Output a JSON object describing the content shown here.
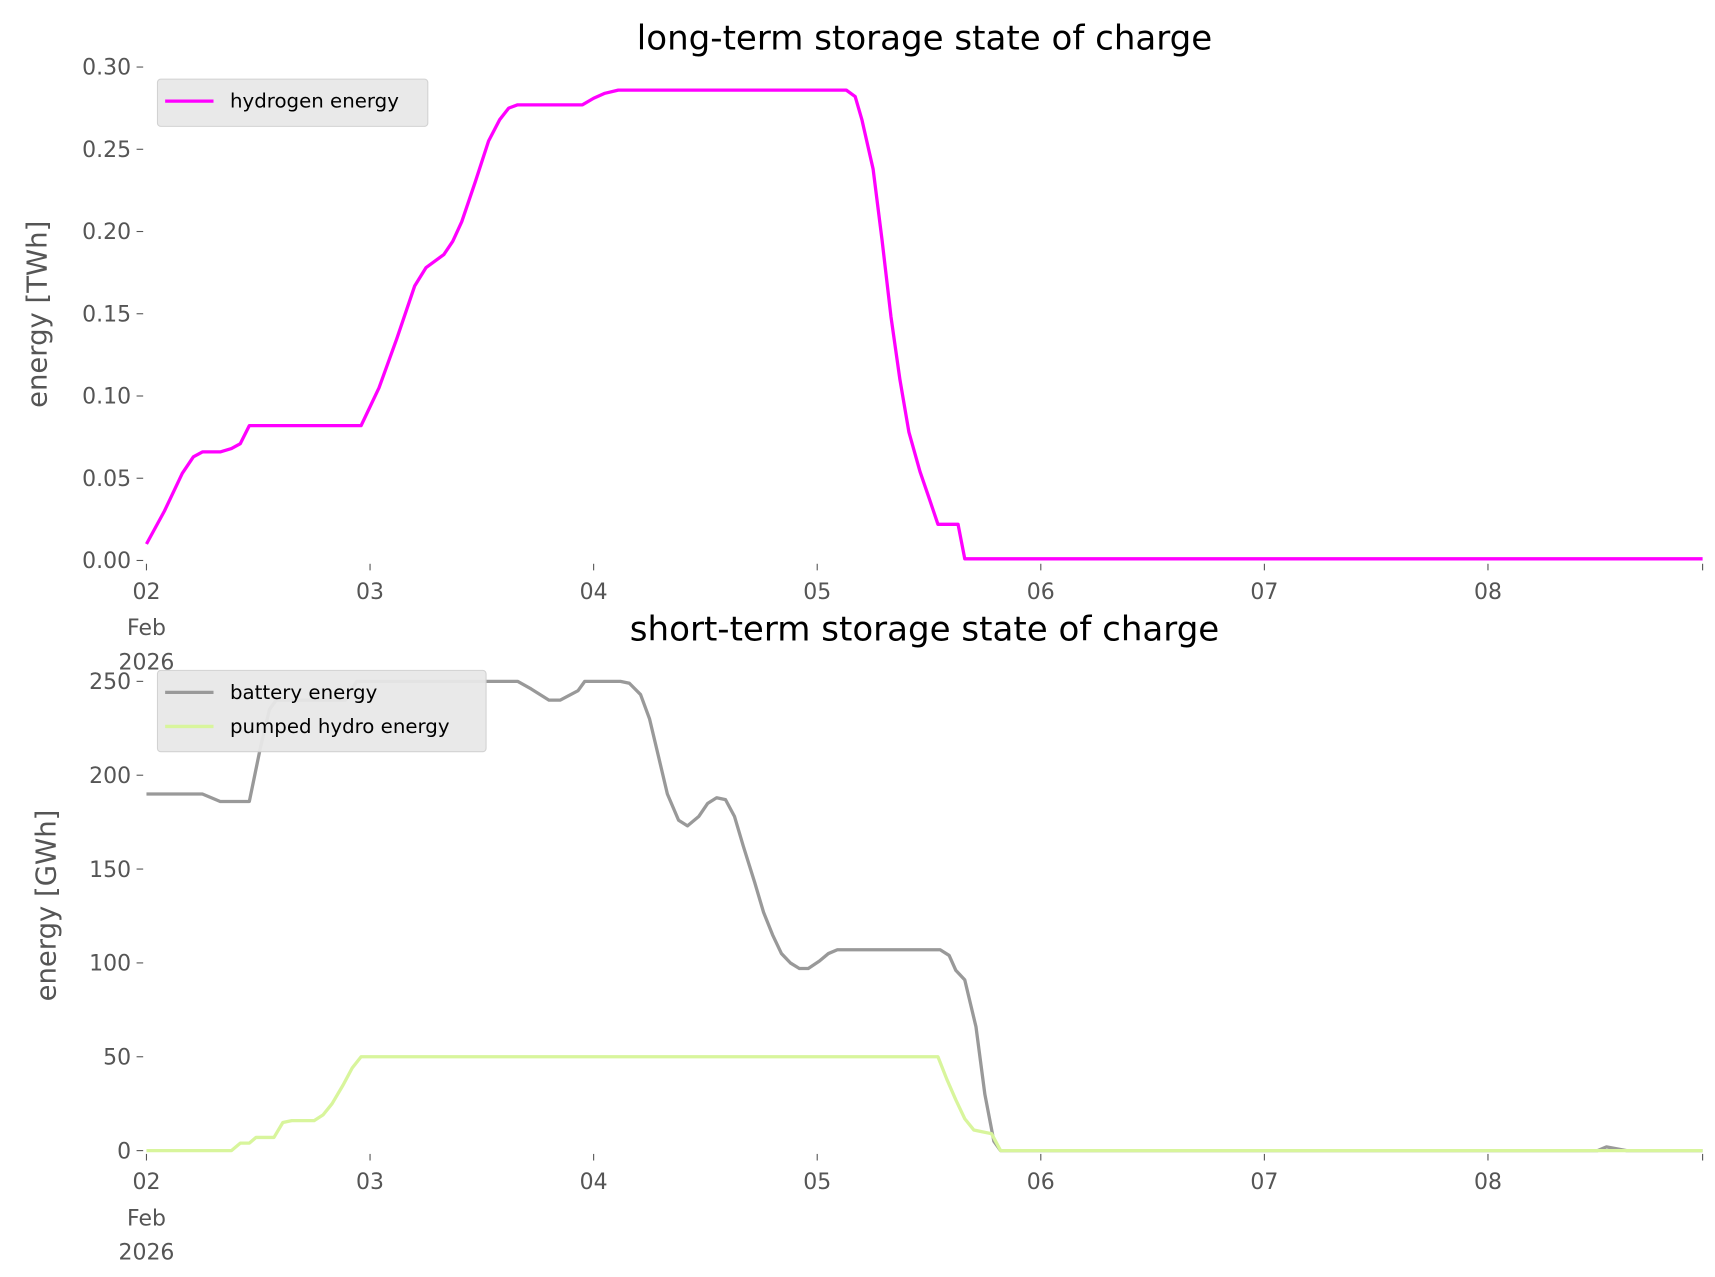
{
  "chart_data": [
    {
      "type": "line",
      "title": "long-term storage state of charge",
      "xlabel": "",
      "ylabel": "energy [TWh]",
      "x_unit": "days since 02 Feb 2026",
      "xlim": [
        0,
        6.96
      ],
      "ylim": [
        0,
        0.3
      ],
      "yticks": [
        "0.00",
        "0.05",
        "0.10",
        "0.15",
        "0.20",
        "0.25",
        "0.30"
      ],
      "ytick_values": [
        0,
        0.05,
        0.1,
        0.15,
        0.2,
        0.25,
        0.3
      ],
      "xticks": [
        "02",
        "03",
        "04",
        "05",
        "06",
        "07",
        "08"
      ],
      "xtick_values": [
        0,
        1,
        2,
        3,
        4,
        5,
        6
      ],
      "xtick_sublabels": [
        "Feb",
        "2026"
      ],
      "grid": false,
      "legend": "top-left",
      "series": [
        {
          "name": "hydrogen energy",
          "color": "#ff00ff",
          "x": [
            0,
            0.08,
            0.16,
            0.21,
            0.25,
            0.33,
            0.38,
            0.42,
            0.46,
            0.96,
            1.04,
            1.12,
            1.2,
            1.25,
            1.33,
            1.37,
            1.41,
            1.47,
            1.53,
            1.58,
            1.62,
            1.66,
            1.95,
            2.0,
            2.05,
            2.11,
            3.13,
            3.17,
            3.2,
            3.25,
            3.29,
            3.33,
            3.37,
            3.41,
            3.46,
            3.5,
            3.54,
            3.63,
            3.66,
            6.96
          ],
          "y": [
            0.01,
            0.03,
            0.053,
            0.063,
            0.066,
            0.066,
            0.068,
            0.071,
            0.082,
            0.082,
            0.105,
            0.135,
            0.167,
            0.178,
            0.186,
            0.194,
            0.206,
            0.23,
            0.255,
            0.268,
            0.275,
            0.277,
            0.277,
            0.281,
            0.284,
            0.286,
            0.286,
            0.282,
            0.268,
            0.238,
            0.195,
            0.148,
            0.11,
            0.078,
            0.054,
            0.038,
            0.022,
            0.022,
            0.001,
            0.001
          ]
        }
      ]
    },
    {
      "type": "line",
      "title": "short-term storage state of charge",
      "xlabel": "",
      "ylabel": "energy [GWh]",
      "x_unit": "days since 02 Feb 2026",
      "xlim": [
        0,
        6.96
      ],
      "ylim": [
        0,
        250
      ],
      "yticks": [
        "0",
        "50",
        "100",
        "150",
        "200",
        "250"
      ],
      "ytick_values": [
        0,
        50,
        100,
        150,
        200,
        250
      ],
      "xticks": [
        "02",
        "03",
        "04",
        "05",
        "06",
        "07",
        "08"
      ],
      "xtick_values": [
        0,
        1,
        2,
        3,
        4,
        5,
        6
      ],
      "xtick_sublabels": [
        "Feb",
        "2026"
      ],
      "grid": false,
      "legend": "top-left",
      "series": [
        {
          "name": "battery energy",
          "color": "#999999",
          "x": [
            0,
            0.25,
            0.33,
            0.46,
            0.51,
            0.55,
            0.58,
            0.89,
            0.94,
            1.66,
            1.72,
            1.8,
            1.85,
            1.93,
            1.96,
            2.12,
            2.16,
            2.21,
            2.25,
            2.29,
            2.33,
            2.38,
            2.42,
            2.47,
            2.51,
            2.55,
            2.59,
            2.63,
            2.67,
            2.72,
            2.76,
            2.8,
            2.84,
            2.88,
            2.92,
            2.96,
            3.01,
            3.05,
            3.09,
            3.55,
            3.59,
            3.62,
            3.66,
            3.71,
            3.75,
            3.79,
            3.82,
            6.49,
            6.53,
            6.62,
            6.96
          ],
          "y": [
            190,
            190,
            186,
            186,
            215,
            235,
            240,
            240,
            250,
            250,
            246,
            240,
            240,
            245,
            250,
            250,
            249,
            243,
            230,
            210,
            190,
            176,
            173,
            178,
            185,
            188,
            187,
            178,
            162,
            143,
            127,
            115,
            105,
            100,
            97,
            97,
            101,
            105,
            107,
            107,
            104,
            96,
            91,
            66,
            30,
            5,
            0,
            0,
            2,
            0,
            0
          ]
        },
        {
          "name": "pumped hydro energy",
          "color": "#d8f59c",
          "x": [
            0,
            0.38,
            0.42,
            0.46,
            0.49,
            0.57,
            0.61,
            0.65,
            0.75,
            0.79,
            0.83,
            0.88,
            0.92,
            0.96,
            3.54,
            3.58,
            3.62,
            3.66,
            3.7,
            3.74,
            3.78,
            3.82,
            6.96
          ],
          "y": [
            0,
            0,
            4,
            4,
            7,
            7,
            15,
            16,
            16,
            19,
            25,
            35,
            44,
            50,
            50,
            38,
            27,
            17,
            11,
            10,
            9,
            0,
            0
          ]
        }
      ]
    }
  ]
}
